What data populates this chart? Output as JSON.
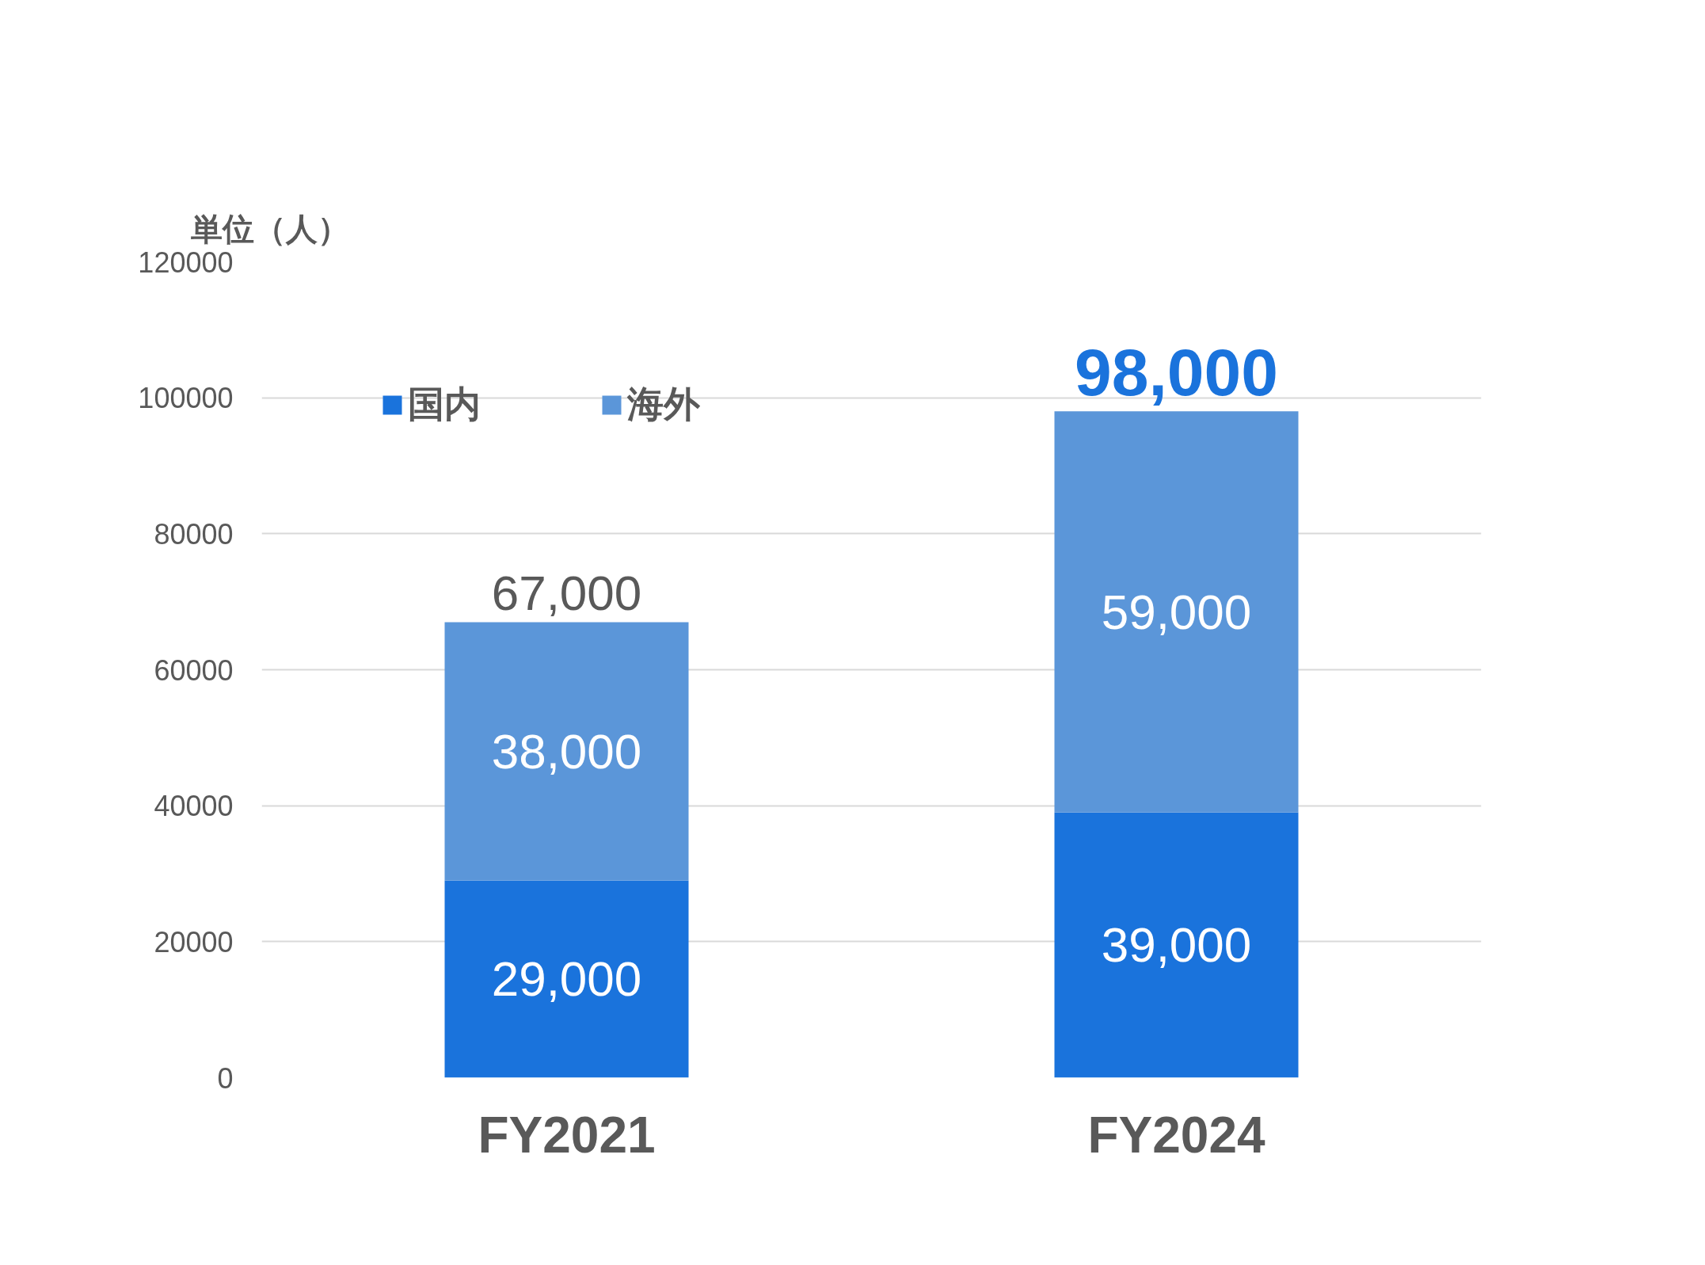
{
  "chart_data": {
    "type": "bar",
    "stacked": true,
    "ylabel": "単位（人）",
    "categories": [
      "FY2021",
      "FY2024"
    ],
    "series": [
      {
        "name": "国内",
        "color": "#1a73dc",
        "values": [
          29000,
          39000
        ],
        "value_labels": [
          "29,000",
          "39,000"
        ]
      },
      {
        "name": "海外",
        "color": "#5b96d9",
        "values": [
          38000,
          59000
        ],
        "value_labels": [
          "38,000",
          "59,000"
        ]
      }
    ],
    "totals": [
      "67,000",
      "98,000"
    ],
    "ylim": [
      0,
      120000
    ],
    "yticks": [
      0,
      20000,
      40000,
      60000,
      80000,
      100000,
      120000
    ],
    "grid": "y",
    "legend": "top left"
  }
}
